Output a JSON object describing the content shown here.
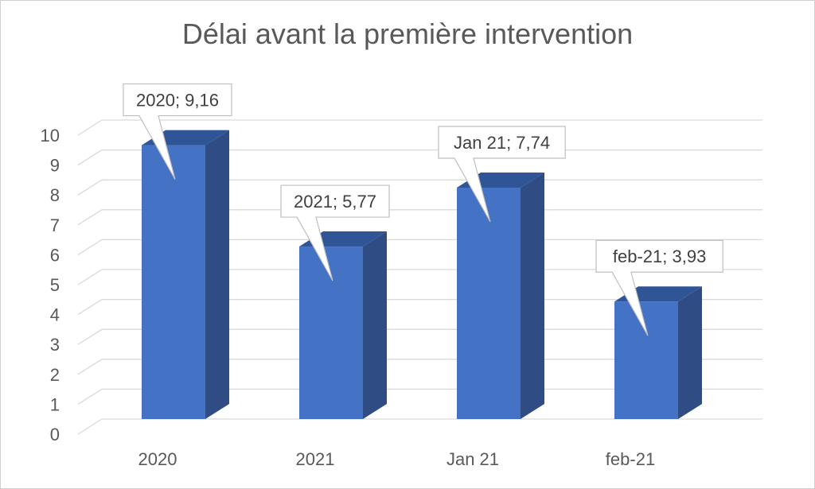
{
  "chart_data": {
    "type": "bar",
    "title": "Délai avant la première intervention",
    "categories": [
      "2020",
      "2021",
      "Jan 21",
      "feb-21"
    ],
    "values": [
      9.16,
      5.77,
      7.74,
      3.93
    ],
    "data_labels": [
      "2020; 9,16",
      "2021; 5,77",
      "Jan 21; 7,74",
      "feb-21; 3,93"
    ],
    "ylim": [
      0,
      10
    ],
    "yticks": [
      "0",
      "1",
      "2",
      "3",
      "4",
      "5",
      "6",
      "7",
      "8",
      "9",
      "10"
    ],
    "xlabel": "",
    "ylabel": "",
    "grid": true,
    "legend": "none",
    "style": "3d-column",
    "colors": {
      "bar_front": "#4472C4",
      "bar_side": "#2F4D84",
      "bar_top": "#2F5597",
      "grid": "#D9D9D9",
      "text": "#595959"
    }
  }
}
